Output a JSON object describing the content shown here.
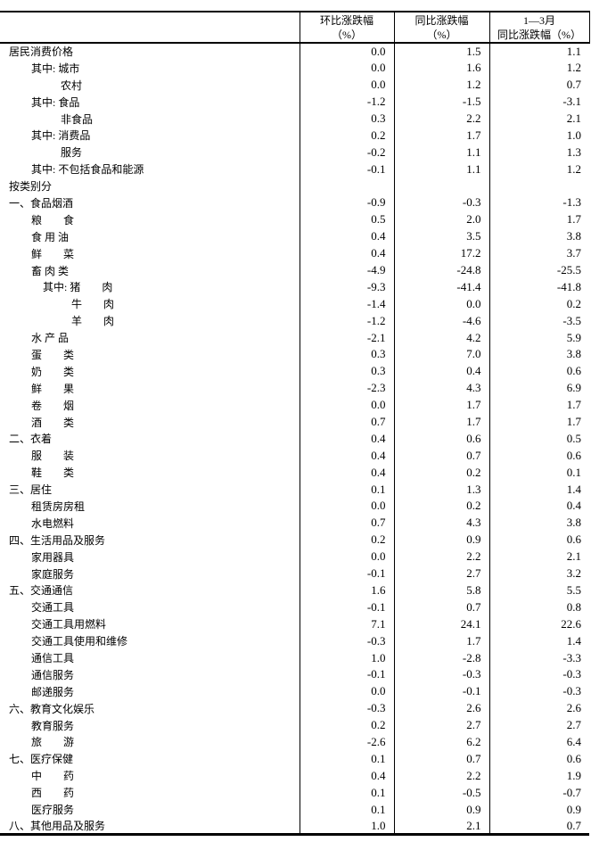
{
  "table": {
    "header": {
      "label_col": "",
      "columns": [
        {
          "line1": "环比涨跌幅",
          "line2": "（%）"
        },
        {
          "line1": "同比涨跌幅",
          "line2": "（%）"
        },
        {
          "line1": "1—3月",
          "line2": "同比涨跌幅（%）"
        }
      ]
    },
    "rows": [
      {
        "label": "居民消费价格",
        "indent": 0,
        "mom": "0.0",
        "yoy": "1.5",
        "ytd": "1.1"
      },
      {
        "label": "其中: 城市",
        "indent": 1,
        "mom": "0.0",
        "yoy": "1.6",
        "ytd": "1.2"
      },
      {
        "label": "农村",
        "indent": 3,
        "mom": "0.0",
        "yoy": "1.2",
        "ytd": "0.7"
      },
      {
        "label": "其中: 食品",
        "indent": 1,
        "mom": "-1.2",
        "yoy": "-1.5",
        "ytd": "-3.1"
      },
      {
        "label": "非食品",
        "indent": 3,
        "mom": "0.3",
        "yoy": "2.2",
        "ytd": "2.1"
      },
      {
        "label": "其中: 消费品",
        "indent": 1,
        "mom": "0.2",
        "yoy": "1.7",
        "ytd": "1.0"
      },
      {
        "label": "服务",
        "indent": 3,
        "mom": "-0.2",
        "yoy": "1.1",
        "ytd": "1.3"
      },
      {
        "label": "其中: 不包括食品和能源",
        "indent": 1,
        "mom": "-0.1",
        "yoy": "1.1",
        "ytd": "1.2"
      },
      {
        "label": "按类别分",
        "indent": 0,
        "mom": "",
        "yoy": "",
        "ytd": ""
      },
      {
        "label": "一、食品烟酒",
        "indent": 0,
        "mom": "-0.9",
        "yoy": "-0.3",
        "ytd": "-1.3"
      },
      {
        "label": "粮　　食",
        "indent": 1,
        "mom": "0.5",
        "yoy": "2.0",
        "ytd": "1.7"
      },
      {
        "label": "食 用 油",
        "indent": 1,
        "mom": "0.4",
        "yoy": "3.5",
        "ytd": "3.8"
      },
      {
        "label": "鲜　　菜",
        "indent": 1,
        "mom": "0.4",
        "yoy": "17.2",
        "ytd": "3.7"
      },
      {
        "label": "畜 肉 类",
        "indent": 1,
        "mom": "-4.9",
        "yoy": "-24.8",
        "ytd": "-25.5"
      },
      {
        "label": "其中: 猪　　肉",
        "indent": 2,
        "mom": "-9.3",
        "yoy": "-41.4",
        "ytd": "-41.8"
      },
      {
        "label": "牛　　肉",
        "indent": 4,
        "mom": "-1.4",
        "yoy": "0.0",
        "ytd": "0.2"
      },
      {
        "label": "羊　　肉",
        "indent": 4,
        "mom": "-1.2",
        "yoy": "-4.6",
        "ytd": "-3.5"
      },
      {
        "label": "水 产 品",
        "indent": 1,
        "mom": "-2.1",
        "yoy": "4.2",
        "ytd": "5.9"
      },
      {
        "label": "蛋　　类",
        "indent": 1,
        "mom": "0.3",
        "yoy": "7.0",
        "ytd": "3.8"
      },
      {
        "label": "奶　　类",
        "indent": 1,
        "mom": "0.3",
        "yoy": "0.4",
        "ytd": "0.6"
      },
      {
        "label": "鲜　　果",
        "indent": 1,
        "mom": "-2.3",
        "yoy": "4.3",
        "ytd": "6.9"
      },
      {
        "label": "卷　　烟",
        "indent": 1,
        "mom": "0.0",
        "yoy": "1.7",
        "ytd": "1.7"
      },
      {
        "label": "酒　　类",
        "indent": 1,
        "mom": "0.7",
        "yoy": "1.7",
        "ytd": "1.7"
      },
      {
        "label": "二、衣着",
        "indent": 0,
        "mom": "0.4",
        "yoy": "0.6",
        "ytd": "0.5"
      },
      {
        "label": "服　　装",
        "indent": 1,
        "mom": "0.4",
        "yoy": "0.7",
        "ytd": "0.6"
      },
      {
        "label": "鞋　　类",
        "indent": 1,
        "mom": "0.4",
        "yoy": "0.2",
        "ytd": "0.1"
      },
      {
        "label": "三、居住",
        "indent": 0,
        "mom": "0.1",
        "yoy": "1.3",
        "ytd": "1.4"
      },
      {
        "label": "租赁房房租",
        "indent": 1,
        "mom": "0.0",
        "yoy": "0.2",
        "ytd": "0.4"
      },
      {
        "label": "水电燃料",
        "indent": 1,
        "mom": "0.7",
        "yoy": "4.3",
        "ytd": "3.8"
      },
      {
        "label": "四、生活用品及服务",
        "indent": 0,
        "mom": "0.2",
        "yoy": "0.9",
        "ytd": "0.6"
      },
      {
        "label": "家用器具",
        "indent": 1,
        "mom": "0.0",
        "yoy": "2.2",
        "ytd": "2.1"
      },
      {
        "label": "家庭服务",
        "indent": 1,
        "mom": "-0.1",
        "yoy": "2.7",
        "ytd": "3.2"
      },
      {
        "label": "五、交通通信",
        "indent": 0,
        "mom": "1.6",
        "yoy": "5.8",
        "ytd": "5.5"
      },
      {
        "label": "交通工具",
        "indent": 1,
        "mom": "-0.1",
        "yoy": "0.7",
        "ytd": "0.8"
      },
      {
        "label": "交通工具用燃料",
        "indent": 1,
        "mom": "7.1",
        "yoy": "24.1",
        "ytd": "22.6"
      },
      {
        "label": "交通工具使用和维修",
        "indent": 1,
        "mom": "-0.3",
        "yoy": "1.7",
        "ytd": "1.4"
      },
      {
        "label": "通信工具",
        "indent": 1,
        "mom": "1.0",
        "yoy": "-2.8",
        "ytd": "-3.3"
      },
      {
        "label": "通信服务",
        "indent": 1,
        "mom": "-0.1",
        "yoy": "-0.3",
        "ytd": "-0.3"
      },
      {
        "label": "邮递服务",
        "indent": 1,
        "mom": "0.0",
        "yoy": "-0.1",
        "ytd": "-0.3"
      },
      {
        "label": "六、教育文化娱乐",
        "indent": 0,
        "mom": "-0.3",
        "yoy": "2.6",
        "ytd": "2.6"
      },
      {
        "label": "教育服务",
        "indent": 1,
        "mom": "0.2",
        "yoy": "2.7",
        "ytd": "2.7"
      },
      {
        "label": "旅　　游",
        "indent": 1,
        "mom": "-2.6",
        "yoy": "6.2",
        "ytd": "6.4"
      },
      {
        "label": "七、医疗保健",
        "indent": 0,
        "mom": "0.1",
        "yoy": "0.7",
        "ytd": "0.6"
      },
      {
        "label": "中　　药",
        "indent": 1,
        "mom": "0.4",
        "yoy": "2.2",
        "ytd": "1.9"
      },
      {
        "label": "西　　药",
        "indent": 1,
        "mom": "0.1",
        "yoy": "-0.5",
        "ytd": "-0.7"
      },
      {
        "label": "医疗服务",
        "indent": 1,
        "mom": "0.1",
        "yoy": "0.9",
        "ytd": "0.9"
      },
      {
        "label": "八、其他用品及服务",
        "indent": 0,
        "mom": "1.0",
        "yoy": "2.1",
        "ytd": "0.7"
      }
    ]
  }
}
